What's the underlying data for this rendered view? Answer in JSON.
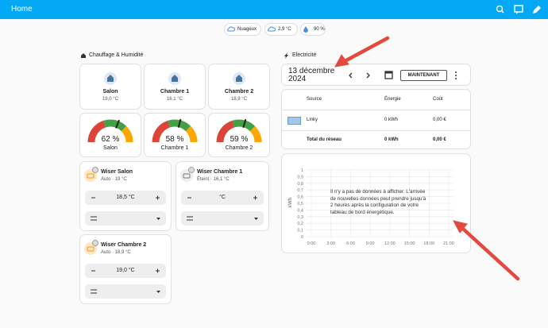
{
  "header": {
    "title": "Home"
  },
  "badges": [
    "Nuageux",
    "2,9 °C",
    "90 %"
  ],
  "heating": {
    "title": "Chauffage & Humidité",
    "rooms": [
      {
        "name": "Salon",
        "temp": "19,0 °C"
      },
      {
        "name": "Chambre 1",
        "temp": "16,1 °C"
      },
      {
        "name": "Chambre 2",
        "temp": "18,9 °C"
      }
    ],
    "gauges": [
      {
        "value": 62,
        "label": "62 %",
        "name": "Salon"
      },
      {
        "value": 58,
        "label": "58 %",
        "name": "Chambre 1"
      },
      {
        "value": 59,
        "label": "59 %",
        "name": "Chambre 2"
      }
    ],
    "thermostats": [
      {
        "name": "Wiser Salon",
        "state": "Auto · 19 °C",
        "target": "18,5 °C"
      },
      {
        "name": "Wiser Chambre 1",
        "state": "Éteint · 16,1 °C",
        "target": "°C"
      },
      {
        "name": "Wiser Chambre 2",
        "state": "Auto · 18,9 °C",
        "target": "19,0 °C"
      }
    ]
  },
  "electricity": {
    "title": "Electricité",
    "date": "13 décembre 2024",
    "button": "MAINTENANT",
    "table": {
      "headers": [
        "Source",
        "Énergie",
        "Coût"
      ],
      "rows": [
        [
          "Linky",
          "0 kWh",
          "0,00 €"
        ],
        [
          "Total du réseau",
          "0 kWh",
          "0,00 €"
        ]
      ]
    },
    "chart": {
      "y_label": "kWh",
      "yticks": [
        "0",
        "0,1",
        "0,2",
        "0,3",
        "0,4",
        "0,5",
        "0,6",
        "0,7",
        "0,8",
        "0,9",
        "1"
      ],
      "xticks": [
        "0:00",
        "3:00",
        "6:00",
        "9:00",
        "12:00",
        "15:00",
        "18:00",
        "21:00"
      ],
      "message": "Il n'y a pas de données à afficher. L'arrivée de nouvelles données peut prendre jusqu'à 2 heures après la configuration de votre tableau de bord énergétique."
    }
  }
}
